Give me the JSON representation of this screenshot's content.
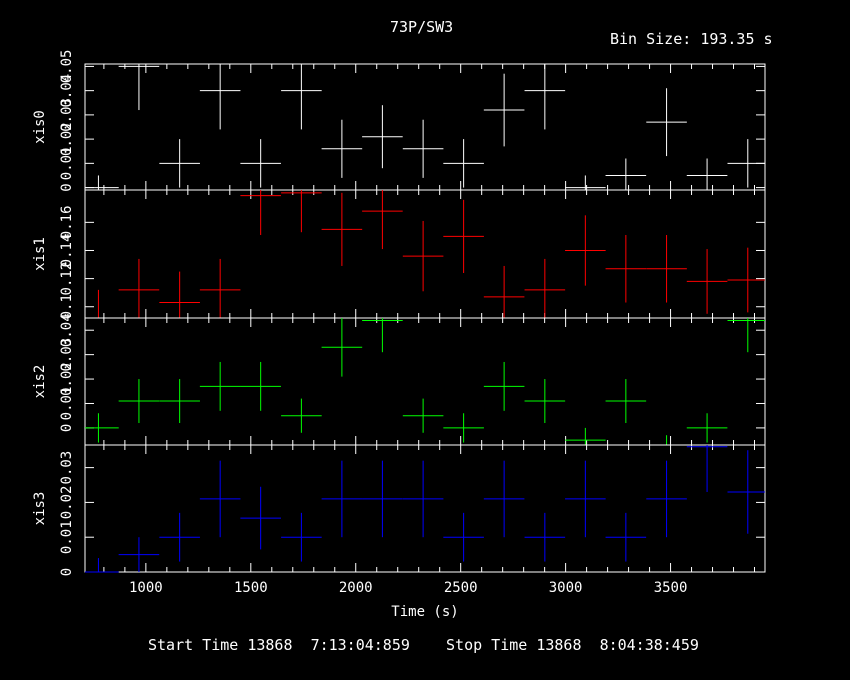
{
  "title": "73P/SW3",
  "bin_size_label": "Bin Size:",
  "bin_size_value": "193.35",
  "bin_size_unit": "s",
  "footer": {
    "start_label": "Start Time",
    "start_day": "13868",
    "start_time": "7:13:04:859",
    "stop_label": "Stop Time",
    "stop_day": "13868",
    "stop_time": "8:04:38:459"
  },
  "chart_data": {
    "type": "scatter",
    "xlabel": "Time (s)",
    "xlim": [
      710,
      3950
    ],
    "x_ticks": [
      1000,
      1500,
      2000,
      2500,
      3000,
      3500
    ],
    "panels": [
      {
        "name": "xis0",
        "color": "#ffffff",
        "ylim": [
          -0.001,
          0.051
        ],
        "y_ticks": [
          0,
          0.01,
          0.02,
          0.03,
          0.04,
          0.05
        ],
        "y_tick_labels": [
          "0",
          "0.01",
          "0.02",
          "0.03",
          "0.04",
          "0.05"
        ],
        "points": [
          {
            "x": 774,
            "y": 0.0,
            "xerr": 96.7,
            "yerr": 0.005
          },
          {
            "x": 967,
            "y": 0.05,
            "xerr": 96.7,
            "yerr": 0.018
          },
          {
            "x": 1161,
            "y": 0.01,
            "xerr": 96.7,
            "yerr": 0.01
          },
          {
            "x": 1354,
            "y": 0.04,
            "xerr": 96.7,
            "yerr": 0.016
          },
          {
            "x": 1547,
            "y": 0.01,
            "xerr": 96.7,
            "yerr": 0.01
          },
          {
            "x": 1741,
            "y": 0.04,
            "xerr": 96.7,
            "yerr": 0.016
          },
          {
            "x": 1934,
            "y": 0.016,
            "xerr": 96.7,
            "yerr": 0.012
          },
          {
            "x": 2127,
            "y": 0.021,
            "xerr": 96.7,
            "yerr": 0.013
          },
          {
            "x": 2321,
            "y": 0.016,
            "xerr": 96.7,
            "yerr": 0.012
          },
          {
            "x": 2514,
            "y": 0.01,
            "xerr": 96.7,
            "yerr": 0.01
          },
          {
            "x": 2707,
            "y": 0.032,
            "xerr": 96.7,
            "yerr": 0.015
          },
          {
            "x": 2901,
            "y": 0.04,
            "xerr": 96.7,
            "yerr": 0.016
          },
          {
            "x": 3094,
            "y": 0.0,
            "xerr": 96.7,
            "yerr": 0.005
          },
          {
            "x": 3287,
            "y": 0.005,
            "xerr": 96.7,
            "yerr": 0.007
          },
          {
            "x": 3481,
            "y": 0.027,
            "xerr": 96.7,
            "yerr": 0.014
          },
          {
            "x": 3674,
            "y": 0.005,
            "xerr": 96.7,
            "yerr": 0.007
          },
          {
            "x": 3868,
            "y": 0.01,
            "xerr": 96.7,
            "yerr": 0.01
          }
        ]
      },
      {
        "name": "xis1",
        "color": "#ff0000",
        "ylim": [
          0.092,
          0.183
        ],
        "y_ticks": [
          0.1,
          0.12,
          0.14,
          0.16
        ],
        "y_tick_labels": [
          "0.1",
          "0.12",
          "0.14",
          "0.16"
        ],
        "points": [
          {
            "x": 774,
            "y": 0.092,
            "xerr": 96.7,
            "yerr": 0.02
          },
          {
            "x": 967,
            "y": 0.112,
            "xerr": 96.7,
            "yerr": 0.022
          },
          {
            "x": 1161,
            "y": 0.103,
            "xerr": 96.7,
            "yerr": 0.022
          },
          {
            "x": 1354,
            "y": 0.112,
            "xerr": 96.7,
            "yerr": 0.022
          },
          {
            "x": 1547,
            "y": 0.179,
            "xerr": 96.7,
            "yerr": 0.028
          },
          {
            "x": 1741,
            "y": 0.181,
            "xerr": 96.7,
            "yerr": 0.028
          },
          {
            "x": 1934,
            "y": 0.155,
            "xerr": 96.7,
            "yerr": 0.026
          },
          {
            "x": 2127,
            "y": 0.168,
            "xerr": 96.7,
            "yerr": 0.027
          },
          {
            "x": 2321,
            "y": 0.136,
            "xerr": 96.7,
            "yerr": 0.025
          },
          {
            "x": 2514,
            "y": 0.15,
            "xerr": 96.7,
            "yerr": 0.026
          },
          {
            "x": 2707,
            "y": 0.107,
            "xerr": 96.7,
            "yerr": 0.022
          },
          {
            "x": 2901,
            "y": 0.112,
            "xerr": 96.7,
            "yerr": 0.022
          },
          {
            "x": 3094,
            "y": 0.14,
            "xerr": 96.7,
            "yerr": 0.025
          },
          {
            "x": 3287,
            "y": 0.127,
            "xerr": 96.7,
            "yerr": 0.024
          },
          {
            "x": 3481,
            "y": 0.127,
            "xerr": 96.7,
            "yerr": 0.024
          },
          {
            "x": 3674,
            "y": 0.118,
            "xerr": 96.7,
            "yerr": 0.023
          },
          {
            "x": 3868,
            "y": 0.119,
            "xerr": 96.7,
            "yerr": 0.023
          }
        ]
      },
      {
        "name": "xis2",
        "color": "#00ff00",
        "ylim": [
          -0.007,
          0.045
        ],
        "y_ticks": [
          0,
          0.01,
          0.02,
          0.03,
          0.04
        ],
        "y_tick_labels": [
          "0",
          "0.01",
          "0.02",
          "0.03",
          "0.04"
        ],
        "points": [
          {
            "x": 774,
            "y": 0.0,
            "xerr": 96.7,
            "yerr": 0.006
          },
          {
            "x": 967,
            "y": 0.011,
            "xerr": 96.7,
            "yerr": 0.009
          },
          {
            "x": 1161,
            "y": 0.011,
            "xerr": 96.7,
            "yerr": 0.009
          },
          {
            "x": 1354,
            "y": 0.017,
            "xerr": 96.7,
            "yerr": 0.01
          },
          {
            "x": 1547,
            "y": 0.017,
            "xerr": 96.7,
            "yerr": 0.01
          },
          {
            "x": 1741,
            "y": 0.005,
            "xerr": 96.7,
            "yerr": 0.007
          },
          {
            "x": 1934,
            "y": 0.033,
            "xerr": 96.7,
            "yerr": 0.012
          },
          {
            "x": 2127,
            "y": 0.044,
            "xerr": 96.7,
            "yerr": 0.013
          },
          {
            "x": 2321,
            "y": 0.005,
            "xerr": 96.7,
            "yerr": 0.007
          },
          {
            "x": 2514,
            "y": 0.0,
            "xerr": 96.7,
            "yerr": 0.006
          },
          {
            "x": 2707,
            "y": 0.017,
            "xerr": 96.7,
            "yerr": 0.01
          },
          {
            "x": 2901,
            "y": 0.011,
            "xerr": 96.7,
            "yerr": 0.009
          },
          {
            "x": 3094,
            "y": -0.005,
            "xerr": 96.7,
            "yerr": 0.005
          },
          {
            "x": 3287,
            "y": 0.011,
            "xerr": 96.7,
            "yerr": 0.009
          },
          {
            "x": 3481,
            "y": -0.007,
            "xerr": 96.7,
            "yerr": 0.004
          },
          {
            "x": 3674,
            "y": 0.0,
            "xerr": 96.7,
            "yerr": 0.006
          },
          {
            "x": 3868,
            "y": 0.044,
            "xerr": 96.7,
            "yerr": 0.013
          }
        ]
      },
      {
        "name": "xis3",
        "color": "#0000ff",
        "ylim": [
          0,
          0.0365
        ],
        "y_ticks": [
          0,
          0.01,
          0.02,
          0.03
        ],
        "y_tick_labels": [
          "0",
          "0.01",
          "0.02",
          "0.03"
        ],
        "points": [
          {
            "x": 774,
            "y": 0.0,
            "xerr": 96.7,
            "yerr": 0.004
          },
          {
            "x": 967,
            "y": 0.005,
            "xerr": 96.7,
            "yerr": 0.005
          },
          {
            "x": 1161,
            "y": 0.01,
            "xerr": 96.7,
            "yerr": 0.007
          },
          {
            "x": 1354,
            "y": 0.021,
            "xerr": 96.7,
            "yerr": 0.011
          },
          {
            "x": 1547,
            "y": 0.0155,
            "xerr": 96.7,
            "yerr": 0.009
          },
          {
            "x": 1741,
            "y": 0.01,
            "xerr": 96.7,
            "yerr": 0.007
          },
          {
            "x": 1934,
            "y": 0.021,
            "xerr": 96.7,
            "yerr": 0.011
          },
          {
            "x": 2127,
            "y": 0.021,
            "xerr": 96.7,
            "yerr": 0.011
          },
          {
            "x": 2321,
            "y": 0.021,
            "xerr": 96.7,
            "yerr": 0.011
          },
          {
            "x": 2514,
            "y": 0.01,
            "xerr": 96.7,
            "yerr": 0.007
          },
          {
            "x": 2707,
            "y": 0.021,
            "xerr": 96.7,
            "yerr": 0.011
          },
          {
            "x": 2901,
            "y": 0.01,
            "xerr": 96.7,
            "yerr": 0.007
          },
          {
            "x": 3094,
            "y": 0.021,
            "xerr": 96.7,
            "yerr": 0.011
          },
          {
            "x": 3287,
            "y": 0.01,
            "xerr": 96.7,
            "yerr": 0.007
          },
          {
            "x": 3481,
            "y": 0.021,
            "xerr": 96.7,
            "yerr": 0.011
          },
          {
            "x": 3674,
            "y": 0.036,
            "xerr": 96.7,
            "yerr": 0.013
          },
          {
            "x": 3868,
            "y": 0.023,
            "xerr": 96.7,
            "yerr": 0.012
          }
        ]
      }
    ]
  }
}
